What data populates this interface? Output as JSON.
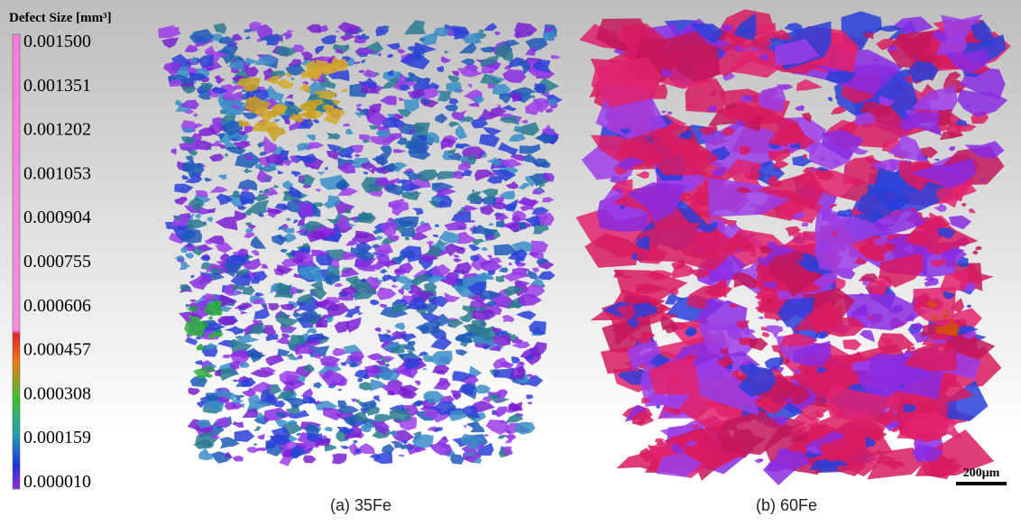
{
  "colorbar": {
    "title": "Defect Size [mm³]",
    "ticks": [
      "0.001500",
      "0.001351",
      "0.001202",
      "0.001053",
      "0.000904",
      "0.000755",
      "0.000606",
      "0.000457",
      "0.000308",
      "0.000159",
      "0.000010"
    ]
  },
  "panels": [
    {
      "caption": "(a) 35Fe"
    },
    {
      "caption": "(b) 60Fe"
    }
  ],
  "scale_bar": {
    "label": "200μm"
  }
}
